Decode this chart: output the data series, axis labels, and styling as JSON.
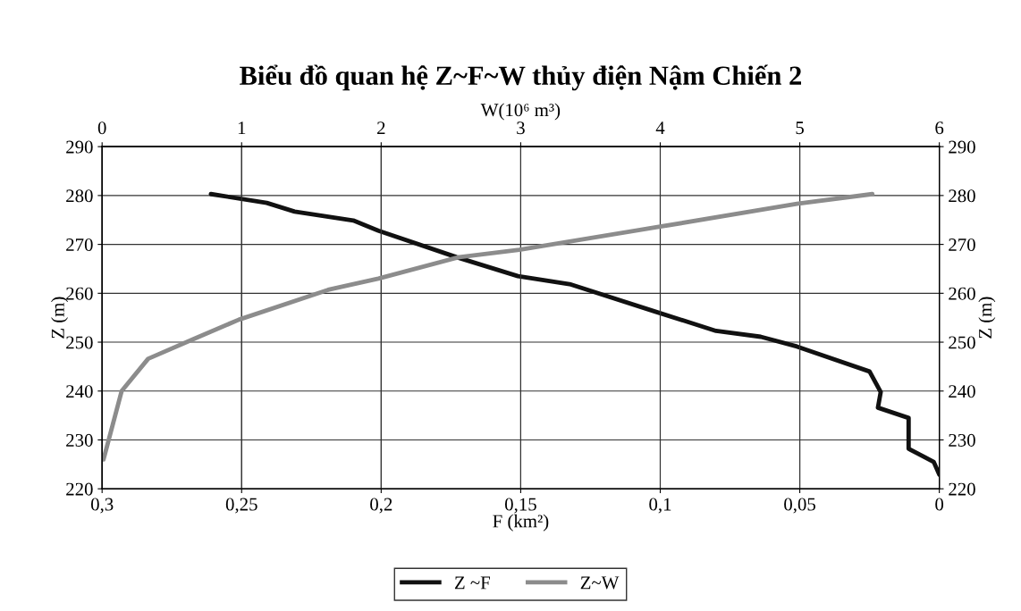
{
  "chart_data": {
    "type": "line",
    "title": "Biểu đồ quan hệ Z~F~W thủy điện Nậm Chiến 2",
    "xlabel": "F (km²)",
    "x2label": "W(10⁶ m³)",
    "ylabel": "Z (m)",
    "y2label": "Z (m)",
    "xlim": [
      0.3,
      0
    ],
    "xticks": [
      {
        "value": 0.3,
        "label": "0,3"
      },
      {
        "value": 0.25,
        "label": "0,25"
      },
      {
        "value": 0.2,
        "label": "0,2"
      },
      {
        "value": 0.15,
        "label": "0,15"
      },
      {
        "value": 0.1,
        "label": "0,1"
      },
      {
        "value": 0.05,
        "label": "0,05"
      },
      0
    ],
    "x2lim": [
      0,
      6
    ],
    "x2ticks": [
      0,
      1,
      2,
      3,
      4,
      5,
      6
    ],
    "ylim": [
      220,
      290
    ],
    "yticks": [
      220,
      230,
      240,
      250,
      260,
      270,
      280,
      290
    ],
    "y2lim": [
      220,
      290
    ],
    "y2ticks": [
      220,
      230,
      240,
      250,
      260,
      270,
      280,
      290
    ],
    "grid": true,
    "legend": "bottom",
    "marker": "none",
    "line_style": "solid",
    "series": [
      {
        "name": "Z ~F",
        "color": "#111111",
        "x": [
          0.261,
          0.241,
          0.231,
          0.21,
          0.201,
          0.173,
          0.151,
          0.132,
          0.102,
          0.08,
          0.064,
          0.051,
          0.025,
          0.021,
          0.022,
          0.011,
          0.011,
          0.002,
          0
        ],
        "values": [
          280.3,
          278.5,
          276.7,
          274.9,
          272.8,
          267.4,
          263.5,
          261.8,
          256.3,
          252.3,
          251.1,
          249.1,
          244,
          239.8,
          236.6,
          234.5,
          228.2,
          225.5,
          222.9
        ]
      },
      {
        "name": "Z~W",
        "color": "#8c8c8c",
        "axis": "x2",
        "x": [
          0.01,
          0.14,
          0.33,
          0.66,
          0.98,
          1.62,
          1.98,
          2.56,
          2.99,
          3.97,
          4.98,
          5.52
        ],
        "values": [
          226,
          240,
          246.6,
          250.7,
          254.6,
          260.7,
          263,
          267.4,
          268.9,
          273.5,
          278.3,
          280.3
        ]
      }
    ]
  }
}
